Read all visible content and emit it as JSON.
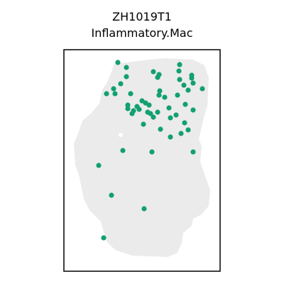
{
  "chart_data": {
    "type": "scatter",
    "title": "ZH1019T1",
    "subtitle": "Inflammatory.Mac",
    "xlabel": "",
    "ylabel": "",
    "grid": false,
    "axis_ticks": false,
    "colors": {
      "tissue": "#ebebeb",
      "highlight": "#12a06f",
      "frame": "#000000"
    },
    "tissue_outline": [
      [
        161,
        90
      ],
      [
        210,
        84
      ],
      [
        232,
        82
      ],
      [
        272,
        84
      ],
      [
        288,
        92
      ],
      [
        294,
        110
      ],
      [
        292,
        150
      ],
      [
        288,
        162
      ],
      [
        280,
        196
      ],
      [
        284,
        206
      ],
      [
        282,
        228
      ],
      [
        296,
        268
      ],
      [
        294,
        290
      ],
      [
        284,
        302
      ],
      [
        272,
        308
      ],
      [
        270,
        318
      ],
      [
        258,
        328
      ],
      [
        256,
        342
      ],
      [
        250,
        356
      ],
      [
        236,
        362
      ],
      [
        186,
        360
      ],
      [
        162,
        352
      ],
      [
        150,
        340
      ],
      [
        142,
        312
      ],
      [
        126,
        296
      ],
      [
        118,
        280
      ],
      [
        112,
        250
      ],
      [
        106,
        232
      ],
      [
        104,
        202
      ],
      [
        110,
        188
      ],
      [
        116,
        170
      ],
      [
        128,
        160
      ],
      [
        140,
        146
      ],
      [
        144,
        126
      ],
      [
        150,
        118
      ],
      [
        156,
        104
      ]
    ],
    "tissue_hole": [
      170,
      190
    ],
    "highlight_points": [
      [
        166,
        88
      ],
      [
        178,
        95
      ],
      [
        178,
        108
      ],
      [
        216,
        101
      ],
      [
        224,
        105
      ],
      [
        222,
        109
      ],
      [
        253,
        91
      ],
      [
        252,
        100
      ],
      [
        253,
        112
      ],
      [
        270,
        106
      ],
      [
        272,
        117
      ],
      [
        285,
        125
      ],
      [
        265,
        127
      ],
      [
        259,
        120
      ],
      [
        250,
        134
      ],
      [
        160,
        125
      ],
      [
        162,
        132
      ],
      [
        150,
        132
      ],
      [
        170,
        118
      ],
      [
        225,
        128
      ],
      [
        224,
        134
      ],
      [
        184,
        132
      ],
      [
        200,
        142
      ],
      [
        205,
        145
      ],
      [
        193,
        150
      ],
      [
        188,
        156
      ],
      [
        180,
        153
      ],
      [
        186,
        160
      ],
      [
        196,
        154
      ],
      [
        208,
        158
      ],
      [
        212,
        160
      ],
      [
        216,
        165
      ],
      [
        222,
        158
      ],
      [
        238,
        152
      ],
      [
        240,
        166
      ],
      [
        248,
        162
      ],
      [
        261,
        147
      ],
      [
        272,
        155
      ],
      [
        260,
        173
      ],
      [
        265,
        183
      ],
      [
        255,
        188
      ],
      [
        240,
        193
      ],
      [
        226,
        182
      ],
      [
        202,
        175
      ],
      [
        173,
        212
      ],
      [
        214,
        214
      ],
      [
        272,
        214
      ],
      [
        139,
        233
      ],
      [
        157,
        275
      ],
      [
        203,
        294
      ],
      [
        146,
        335
      ],
      [
        232,
        137
      ],
      [
        270,
        110
      ],
      [
        180,
        148
      ],
      [
        210,
        148
      ]
    ]
  }
}
